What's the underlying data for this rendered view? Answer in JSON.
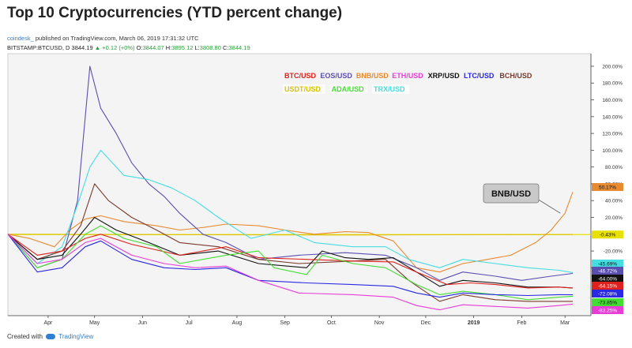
{
  "header": {
    "title": "Top 10 Cryptocurrencies (YTD percent change)",
    "author": "coindesk_",
    "published": "published on TradingView.com, March 06, 2019 17:31:32 UTC",
    "ohlc": {
      "symbol": "BITSTAMP:BTCUSD, D",
      "last": "3844.19",
      "change": "▲ +0.12 (+0%)",
      "o_label": "O:",
      "o": "3844.07",
      "h_label": "H:",
      "h": "3895.12",
      "l_label": "L:",
      "l": "3808.80",
      "c_label": "C:",
      "c": "3844.19"
    }
  },
  "footer": {
    "prefix": "Created with",
    "brand": "TradingView"
  },
  "chart_data": {
    "type": "line",
    "x_axis": {
      "range": [
        "2018-03-06",
        "2019-03-06"
      ],
      "ticks": [
        {
          "date": "2018-04-01",
          "label": "Apr"
        },
        {
          "date": "2018-05-01",
          "label": "May"
        },
        {
          "date": "2018-06-01",
          "label": "Jun"
        },
        {
          "date": "2018-07-01",
          "label": "Jul"
        },
        {
          "date": "2018-08-01",
          "label": "Aug"
        },
        {
          "date": "2018-09-01",
          "label": "Sep"
        },
        {
          "date": "2018-10-01",
          "label": "Oct"
        },
        {
          "date": "2018-11-01",
          "label": "Nov"
        },
        {
          "date": "2018-12-01",
          "label": "Dec"
        },
        {
          "date": "2019-01-01",
          "label": "2019"
        },
        {
          "date": "2019-02-01",
          "label": "Feb"
        },
        {
          "date": "2019-03-01",
          "label": "Mar"
        }
      ]
    },
    "y_axis": {
      "unit": "%",
      "range": [
        -97,
        215
      ],
      "ticks": [
        {
          "value": 200,
          "label": "200.00%"
        },
        {
          "value": 180,
          "label": "180.00%"
        },
        {
          "value": 160,
          "label": "160.00%"
        },
        {
          "value": 140,
          "label": "140.00%"
        },
        {
          "value": 120,
          "label": "120.00%"
        },
        {
          "value": 100,
          "label": "100.00%"
        },
        {
          "value": 80,
          "label": "80.00%"
        },
        {
          "value": 60,
          "label": "60.00%"
        },
        {
          "value": 40,
          "label": "40.00%"
        },
        {
          "value": 20,
          "label": "20.00%"
        },
        {
          "value": -20,
          "label": "-20.00%"
        },
        {
          "value": -40,
          "label": "-40.00%"
        }
      ]
    },
    "grid": false,
    "baseline": {
      "value": -0.43,
      "label": "-0.43%",
      "color": "#e8e000"
    },
    "legend": [
      {
        "name": "BTC/USD",
        "color": "#e0201c"
      },
      {
        "name": "EOS/USD",
        "color": "#5a4fb0"
      },
      {
        "name": "BNB/USD",
        "color": "#e88a30"
      },
      {
        "name": "ETH/USD",
        "color": "#e83cd6"
      },
      {
        "name": "XRP/USD",
        "color": "#111111"
      },
      {
        "name": "LTC/USD",
        "color": "#2a28e0"
      },
      {
        "name": "BCH/USD",
        "color": "#7a3a2c"
      },
      {
        "name": "USDT/USD",
        "color": "#d8c400"
      },
      {
        "name": "ADA/USD",
        "color": "#44dd33"
      },
      {
        "name": "TRX/USD",
        "color": "#44dde0"
      }
    ],
    "last_labels": [
      {
        "value": 50.17,
        "label": "50.17%",
        "color": "#e88a30"
      },
      {
        "value": -45.69,
        "label": "-45.69%",
        "color": "#44dde0"
      },
      {
        "value": -46.72,
        "label": "-46.72%",
        "color": "#5a4fb0"
      },
      {
        "value": -64.0,
        "label": "-64.00%",
        "color": "#111111"
      },
      {
        "value": -64.15,
        "label": "-64.15%",
        "color": "#e0201c"
      },
      {
        "value": -72.08,
        "label": "-72.08%",
        "color": "#2a28e0"
      },
      {
        "value": -73.85,
        "label": "-73.85%",
        "color": "#44dd33"
      },
      {
        "value": -83.25,
        "label": "-83.25%",
        "color": "#e83cd6"
      }
    ],
    "annotation": {
      "text": "BNB/USD",
      "date": "2019-02-26",
      "value": 25
    },
    "series": [
      {
        "color": "#d8c400",
        "points": [
          [
            "2018-03-06",
            0
          ],
          [
            "2018-06-15",
            -0.5
          ],
          [
            "2018-10-15",
            -1
          ],
          [
            "2019-01-15",
            -0.5
          ],
          [
            "2019-03-06",
            -0.43
          ]
        ]
      },
      {
        "color": "#e88a30",
        "points": [
          [
            "2018-03-06",
            0
          ],
          [
            "2018-03-20",
            -5
          ],
          [
            "2018-04-05",
            -15
          ],
          [
            "2018-04-15",
            5
          ],
          [
            "2018-04-25",
            18
          ],
          [
            "2018-05-05",
            22
          ],
          [
            "2018-05-20",
            15
          ],
          [
            "2018-06-10",
            10
          ],
          [
            "2018-06-25",
            5
          ],
          [
            "2018-07-10",
            8
          ],
          [
            "2018-07-25",
            12
          ],
          [
            "2018-08-15",
            10
          ],
          [
            "2018-09-01",
            5
          ],
          [
            "2018-09-20",
            0
          ],
          [
            "2018-10-10",
            3
          ],
          [
            "2018-10-25",
            2
          ],
          [
            "2018-11-10",
            -8
          ],
          [
            "2018-11-25",
            -40
          ],
          [
            "2018-12-10",
            -45
          ],
          [
            "2018-12-25",
            -35
          ],
          [
            "2019-01-10",
            -30
          ],
          [
            "2019-01-25",
            -25
          ],
          [
            "2019-02-10",
            -10
          ],
          [
            "2019-02-20",
            5
          ],
          [
            "2019-03-01",
            25
          ],
          [
            "2019-03-06",
            50.17
          ]
        ]
      },
      {
        "color": "#5a4fb0",
        "points": [
          [
            "2018-03-06",
            0
          ],
          [
            "2018-03-25",
            -40
          ],
          [
            "2018-04-10",
            -30
          ],
          [
            "2018-04-20",
            40
          ],
          [
            "2018-04-28",
            200
          ],
          [
            "2018-05-05",
            150
          ],
          [
            "2018-05-15",
            120
          ],
          [
            "2018-05-25",
            85
          ],
          [
            "2018-06-05",
            60
          ],
          [
            "2018-06-15",
            45
          ],
          [
            "2018-06-25",
            25
          ],
          [
            "2018-07-10",
            0
          ],
          [
            "2018-07-25",
            -10
          ],
          [
            "2018-08-15",
            -30
          ],
          [
            "2018-09-10",
            -25
          ],
          [
            "2018-10-10",
            -22
          ],
          [
            "2018-11-05",
            -25
          ],
          [
            "2018-11-25",
            -40
          ],
          [
            "2018-12-10",
            -55
          ],
          [
            "2018-12-25",
            -45
          ],
          [
            "2019-01-15",
            -50
          ],
          [
            "2019-02-01",
            -55
          ],
          [
            "2019-02-20",
            -50
          ],
          [
            "2019-03-06",
            -46.72
          ]
        ]
      },
      {
        "color": "#44dde0",
        "points": [
          [
            "2018-03-06",
            0
          ],
          [
            "2018-03-25",
            -35
          ],
          [
            "2018-04-10",
            -15
          ],
          [
            "2018-04-20",
            35
          ],
          [
            "2018-04-28",
            80
          ],
          [
            "2018-05-05",
            100
          ],
          [
            "2018-05-20",
            70
          ],
          [
            "2018-06-05",
            65
          ],
          [
            "2018-06-20",
            55
          ],
          [
            "2018-07-05",
            40
          ],
          [
            "2018-07-20",
            20
          ],
          [
            "2018-08-10",
            -5
          ],
          [
            "2018-09-01",
            5
          ],
          [
            "2018-09-20",
            -10
          ],
          [
            "2018-10-15",
            -15
          ],
          [
            "2018-11-05",
            -15
          ],
          [
            "2018-11-20",
            -30
          ],
          [
            "2018-12-10",
            -40
          ],
          [
            "2018-12-25",
            -30
          ],
          [
            "2019-01-15",
            -35
          ],
          [
            "2019-02-05",
            -40
          ],
          [
            "2019-02-25",
            -43
          ],
          [
            "2019-03-06",
            -45.69
          ]
        ]
      },
      {
        "color": "#7a3a2c",
        "points": [
          [
            "2018-03-06",
            0
          ],
          [
            "2018-03-25",
            -30
          ],
          [
            "2018-04-10",
            -20
          ],
          [
            "2018-04-22",
            10
          ],
          [
            "2018-05-01",
            60
          ],
          [
            "2018-05-10",
            40
          ],
          [
            "2018-05-25",
            20
          ],
          [
            "2018-06-10",
            5
          ],
          [
            "2018-06-25",
            -10
          ],
          [
            "2018-07-20",
            -15
          ],
          [
            "2018-08-15",
            -30
          ],
          [
            "2018-09-10",
            -35
          ],
          [
            "2018-10-15",
            -32
          ],
          [
            "2018-11-05",
            -30
          ],
          [
            "2018-11-20",
            -55
          ],
          [
            "2018-12-10",
            -80
          ],
          [
            "2018-12-25",
            -72
          ],
          [
            "2019-01-15",
            -78
          ],
          [
            "2019-02-05",
            -80
          ],
          [
            "2019-02-25",
            -80
          ],
          [
            "2019-03-06",
            -80
          ]
        ]
      },
      {
        "color": "#111111",
        "points": [
          [
            "2018-03-06",
            0
          ],
          [
            "2018-03-25",
            -30
          ],
          [
            "2018-04-10",
            -25
          ],
          [
            "2018-04-22",
            0
          ],
          [
            "2018-05-01",
            20
          ],
          [
            "2018-05-15",
            5
          ],
          [
            "2018-06-05",
            -10
          ],
          [
            "2018-06-25",
            -25
          ],
          [
            "2018-07-20",
            -20
          ],
          [
            "2018-08-15",
            -35
          ],
          [
            "2018-09-15",
            -40
          ],
          [
            "2018-09-25",
            -20
          ],
          [
            "2018-10-10",
            -28
          ],
          [
            "2018-10-25",
            -30
          ],
          [
            "2018-11-10",
            -28
          ],
          [
            "2018-11-25",
            -45
          ],
          [
            "2018-12-10",
            -62
          ],
          [
            "2018-12-25",
            -55
          ],
          [
            "2019-01-15",
            -58
          ],
          [
            "2019-02-05",
            -63
          ],
          [
            "2019-02-25",
            -63
          ],
          [
            "2019-03-06",
            -64
          ]
        ]
      },
      {
        "color": "#e0201c",
        "points": [
          [
            "2018-03-06",
            0
          ],
          [
            "2018-03-25",
            -25
          ],
          [
            "2018-04-10",
            -20
          ],
          [
            "2018-04-25",
            -5
          ],
          [
            "2018-05-05",
            0
          ],
          [
            "2018-05-25",
            -12
          ],
          [
            "2018-06-25",
            -25
          ],
          [
            "2018-07-25",
            -15
          ],
          [
            "2018-08-15",
            -28
          ],
          [
            "2018-09-15",
            -30
          ],
          [
            "2018-10-15",
            -32
          ],
          [
            "2018-11-10",
            -33
          ],
          [
            "2018-11-25",
            -45
          ],
          [
            "2018-12-15",
            -60
          ],
          [
            "2018-12-30",
            -58
          ],
          [
            "2019-01-15",
            -60
          ],
          [
            "2019-02-05",
            -64
          ],
          [
            "2019-02-25",
            -63
          ],
          [
            "2019-03-06",
            -64.15
          ]
        ]
      },
      {
        "color": "#44dd33",
        "points": [
          [
            "2018-03-06",
            0
          ],
          [
            "2018-03-25",
            -40
          ],
          [
            "2018-04-10",
            -30
          ],
          [
            "2018-04-25",
            0
          ],
          [
            "2018-05-05",
            10
          ],
          [
            "2018-05-20",
            -5
          ],
          [
            "2018-06-10",
            -15
          ],
          [
            "2018-06-25",
            -35
          ],
          [
            "2018-07-25",
            -25
          ],
          [
            "2018-08-15",
            -20
          ],
          [
            "2018-08-25",
            -40
          ],
          [
            "2018-09-15",
            -48
          ],
          [
            "2018-09-25",
            -25
          ],
          [
            "2018-10-15",
            -35
          ],
          [
            "2018-11-05",
            -40
          ],
          [
            "2018-11-25",
            -60
          ],
          [
            "2018-12-10",
            -72
          ],
          [
            "2018-12-25",
            -68
          ],
          [
            "2019-01-15",
            -72
          ],
          [
            "2019-02-05",
            -78
          ],
          [
            "2019-02-25",
            -75
          ],
          [
            "2019-03-06",
            -73.85
          ]
        ]
      },
      {
        "color": "#2a28e0",
        "points": [
          [
            "2018-03-06",
            0
          ],
          [
            "2018-03-25",
            -45
          ],
          [
            "2018-04-10",
            -40
          ],
          [
            "2018-04-25",
            -15
          ],
          [
            "2018-05-05",
            -8
          ],
          [
            "2018-05-25",
            -30
          ],
          [
            "2018-06-15",
            -40
          ],
          [
            "2018-07-05",
            -42
          ],
          [
            "2018-07-25",
            -40
          ],
          [
            "2018-08-15",
            -55
          ],
          [
            "2018-09-15",
            -58
          ],
          [
            "2018-10-15",
            -60
          ],
          [
            "2018-11-10",
            -62
          ],
          [
            "2018-11-25",
            -70
          ],
          [
            "2018-12-10",
            -75
          ],
          [
            "2018-12-25",
            -70
          ],
          [
            "2019-01-15",
            -72
          ],
          [
            "2019-02-05",
            -73
          ],
          [
            "2019-02-25",
            -72
          ],
          [
            "2019-03-06",
            -72.08
          ]
        ]
      },
      {
        "color": "#e83cd6",
        "points": [
          [
            "2018-03-06",
            0
          ],
          [
            "2018-03-25",
            -35
          ],
          [
            "2018-04-10",
            -30
          ],
          [
            "2018-04-25",
            -10
          ],
          [
            "2018-05-05",
            -5
          ],
          [
            "2018-05-25",
            -25
          ],
          [
            "2018-06-15",
            -35
          ],
          [
            "2018-07-05",
            -40
          ],
          [
            "2018-07-25",
            -38
          ],
          [
            "2018-08-15",
            -55
          ],
          [
            "2018-09-10",
            -70
          ],
          [
            "2018-10-15",
            -72
          ],
          [
            "2018-11-10",
            -75
          ],
          [
            "2018-11-25",
            -85
          ],
          [
            "2018-12-10",
            -90
          ],
          [
            "2018-12-25",
            -84
          ],
          [
            "2019-01-15",
            -86
          ],
          [
            "2019-02-05",
            -88
          ],
          [
            "2019-02-25",
            -85
          ],
          [
            "2019-03-06",
            -83.25
          ]
        ]
      }
    ]
  }
}
